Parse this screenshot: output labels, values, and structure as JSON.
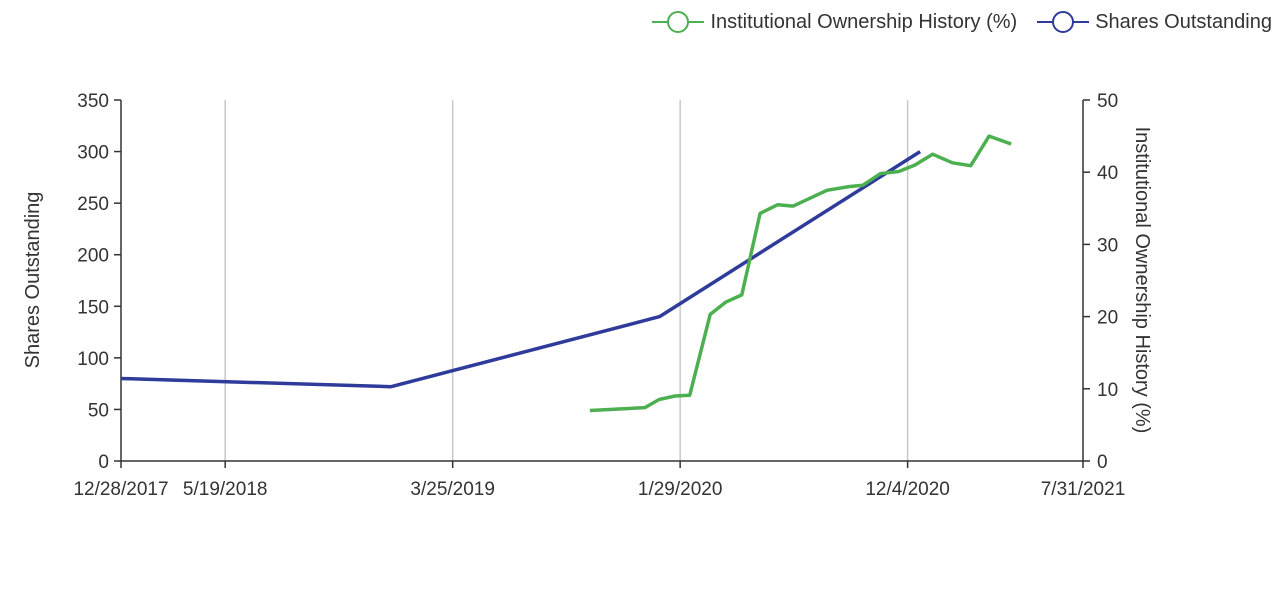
{
  "legend": [
    {
      "label": "Institutional Ownership History (%)",
      "color": "#4caf50"
    },
    {
      "label": "Shares Outstanding",
      "color": "#2e3b9a"
    }
  ],
  "chart_data": {
    "type": "line",
    "x_ticks": [
      "12/28/2017",
      "5/19/2018",
      "3/25/2019",
      "1/29/2020",
      "12/4/2020",
      "7/31/2021"
    ],
    "x_range": [
      "2017-12-28",
      "2021-07-31"
    ],
    "grid": "vertical lines at x ticks",
    "legend_position": "top-right",
    "y_left": {
      "label": "Shares Outstanding",
      "range": [
        0,
        350
      ],
      "ticks": [
        0,
        50,
        100,
        150,
        200,
        250,
        300,
        350
      ]
    },
    "y_right": {
      "label": "Institutional Ownership History (%)",
      "range": [
        0,
        50
      ],
      "ticks": [
        0,
        10,
        20,
        30,
        40,
        50
      ]
    },
    "series": [
      {
        "name": "Shares Outstanding",
        "axis": "left",
        "color": "#2e3b9a",
        "points": [
          {
            "x": "2017-12-28",
            "y": 80
          },
          {
            "x": "2018-12-31",
            "y": 72
          },
          {
            "x": "2020-01-01",
            "y": 140
          },
          {
            "x": "2020-12-21",
            "y": 300
          }
        ]
      },
      {
        "name": "Institutional Ownership History (%)",
        "axis": "right",
        "color": "#4caf50",
        "points": [
          {
            "x": "2019-09-28",
            "y": 7.0
          },
          {
            "x": "2019-12-12",
            "y": 7.4
          },
          {
            "x": "2019-12-31",
            "y": 8.5
          },
          {
            "x": "2020-01-22",
            "y": 9.0
          },
          {
            "x": "2020-02-11",
            "y": 9.1
          },
          {
            "x": "2020-03-10",
            "y": 20.3
          },
          {
            "x": "2020-03-31",
            "y": 22.0
          },
          {
            "x": "2020-04-22",
            "y": 23.0
          },
          {
            "x": "2020-05-17",
            "y": 34.3
          },
          {
            "x": "2020-06-10",
            "y": 35.5
          },
          {
            "x": "2020-07-01",
            "y": 35.3
          },
          {
            "x": "2020-08-16",
            "y": 37.5
          },
          {
            "x": "2020-09-15",
            "y": 38.0
          },
          {
            "x": "2020-10-04",
            "y": 38.2
          },
          {
            "x": "2020-10-28",
            "y": 39.8
          },
          {
            "x": "2020-11-22",
            "y": 40.1
          },
          {
            "x": "2020-12-14",
            "y": 41.0
          },
          {
            "x": "2021-01-07",
            "y": 42.5
          },
          {
            "x": "2021-02-03",
            "y": 41.3
          },
          {
            "x": "2021-02-28",
            "y": 40.9
          },
          {
            "x": "2021-03-25",
            "y": 45.0
          },
          {
            "x": "2021-04-24",
            "y": 43.9
          }
        ]
      }
    ]
  }
}
